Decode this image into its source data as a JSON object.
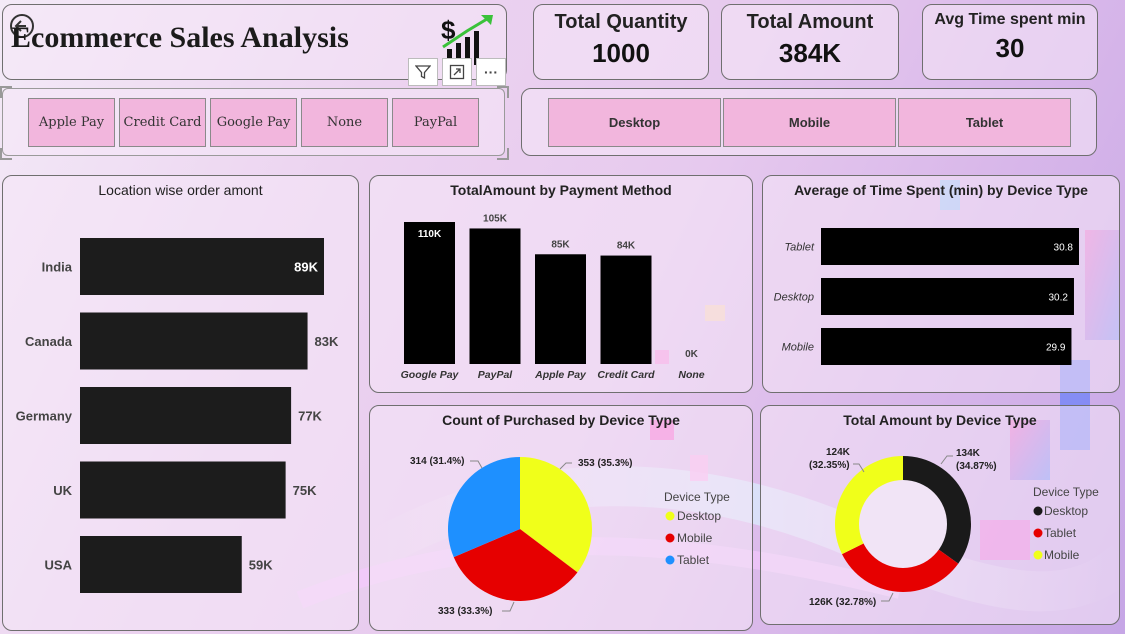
{
  "header": {
    "title": "Ecommerce Sales Analysis"
  },
  "toolbar": {
    "filter_icon": "filter-icon",
    "focus_icon": "focus-mode-icon",
    "more_label": "···"
  },
  "kpis": [
    {
      "label": "Total Quantity",
      "value": "1000"
    },
    {
      "label": "Total Amount",
      "value": "384K"
    },
    {
      "label": "Avg Time spent min",
      "value": "30"
    }
  ],
  "payment_slicer": [
    "Apple Pay",
    "Credit Card",
    "Google Pay",
    "None",
    "PayPal"
  ],
  "device_slicer": [
    "Desktop",
    "Mobile",
    "Tablet"
  ],
  "colors": {
    "bar_dark": "#1c1c1c",
    "bar_black": "#000000",
    "desktop": "#f0ff1a",
    "mobile": "#e60000",
    "tablet": "#1e90ff",
    "donut_desktop": "#1a1a1a"
  },
  "chart_data": [
    {
      "id": "location",
      "type": "bar",
      "orientation": "horizontal",
      "title": "Location wise order amont",
      "categories": [
        "India",
        "Canada",
        "Germany",
        "UK",
        "USA"
      ],
      "values": [
        89,
        83,
        77,
        75,
        59
      ],
      "labels": [
        "89K",
        "83K",
        "77K",
        "75K",
        "59K"
      ],
      "xlim": [
        0,
        89
      ]
    },
    {
      "id": "payment",
      "type": "bar",
      "title": "TotalAmount by Payment Method",
      "categories": [
        "Google Pay",
        "PayPal",
        "Apple Pay",
        "Credit Card",
        "None"
      ],
      "values": [
        110,
        105,
        85,
        84,
        0
      ],
      "labels": [
        "110K",
        "105K",
        "85K",
        "84K",
        "0K"
      ],
      "ylim": [
        0,
        110
      ]
    },
    {
      "id": "timespent",
      "type": "bar",
      "orientation": "horizontal",
      "title": "Average of Time Spent (min) by Device Type",
      "categories": [
        "Tablet",
        "Desktop",
        "Mobile"
      ],
      "values": [
        30.8,
        30.2,
        29.9
      ],
      "labels": [
        "30.8",
        "30.2",
        "29.9"
      ],
      "xlim": [
        0,
        30.8
      ]
    },
    {
      "id": "count_pie",
      "type": "pie",
      "title": "Count of Purchased by Device Type",
      "legend_title": "Device Type",
      "series": [
        {
          "name": "Desktop",
          "value": 353,
          "label": "353 (35.3%)"
        },
        {
          "name": "Mobile",
          "value": 333,
          "label": "333 (33.3%)"
        },
        {
          "name": "Tablet",
          "value": 314,
          "label": "314 (31.4%)"
        }
      ]
    },
    {
      "id": "amount_donut",
      "type": "pie",
      "title": "Total Amount by Device Type",
      "legend_title": "Device Type",
      "series": [
        {
          "name": "Desktop",
          "value": 134,
          "label_top": "134K",
          "label_bottom": "(34.87%)"
        },
        {
          "name": "Tablet",
          "value": 126,
          "label_top": "126K (32.78%)",
          "label_bottom": ""
        },
        {
          "name": "Mobile",
          "value": 124,
          "label_top": "124K",
          "label_bottom": "(32.35%)"
        }
      ]
    }
  ]
}
